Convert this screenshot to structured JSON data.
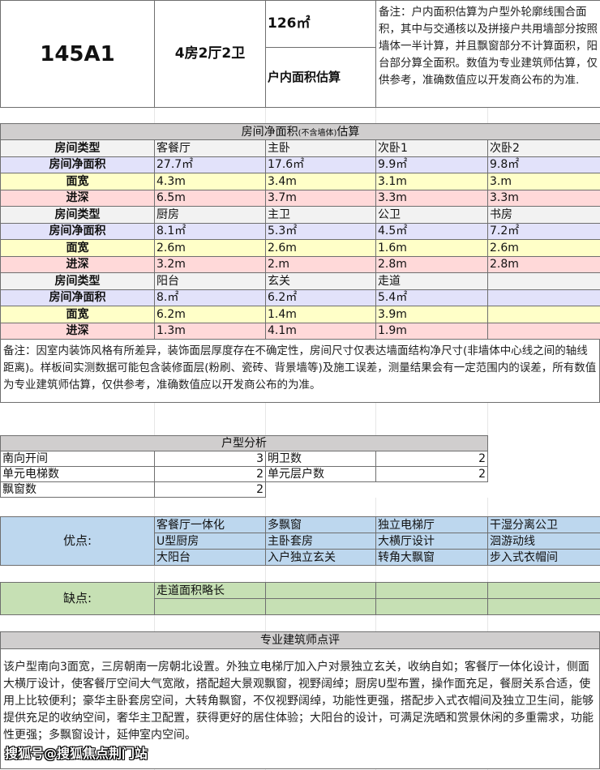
{
  "header": {
    "unit_code": "145A1",
    "layout": "4房2厅2卫",
    "area_value": "126㎡",
    "area_label": "户内面积估算",
    "note": "备注：户内面积估算为户型外轮廓线围合面积，其中与交通核以及拼接户共用墙部分按照墙体一半计算，并且飘窗部分不计算面积，阳台部分算全面积。数值为专业建筑师估算，仅供参考，准确数值应以开发商公布的为准."
  },
  "rooms": {
    "title": "房间净面积",
    "title_small": "(不含墙体)",
    "title_end": "估算",
    "row_labels": {
      "type": "房间类型",
      "area": "房间净面积",
      "width": "面宽",
      "depth": "进深"
    },
    "groups": [
      {
        "types": [
          "客餐厅",
          "主卧",
          "次卧1",
          "次卧2"
        ],
        "areas": [
          "27.7㎡",
          "17.6㎡",
          "9.9㎡",
          "9.8㎡"
        ],
        "widths": [
          "4.3m",
          "3.4m",
          "3.1m",
          "3.m"
        ],
        "depths": [
          "6.5m",
          "3.7m",
          "3.3m",
          "3.3m"
        ]
      },
      {
        "types": [
          "厨房",
          "主卫",
          "公卫",
          "书房"
        ],
        "areas": [
          "8.1㎡",
          "5.3㎡",
          "4.5㎡",
          "7.2㎡"
        ],
        "widths": [
          "2.6m",
          "2.6m",
          "1.6m",
          "2.6m"
        ],
        "depths": [
          "3.2m",
          "2.m",
          "2.8m",
          "2.8m"
        ]
      },
      {
        "types": [
          "阳台",
          "玄关",
          "走道",
          ""
        ],
        "areas": [
          "8.㎡",
          "6.2㎡",
          "5.4㎡",
          ""
        ],
        "widths": [
          "6.2m",
          "1.4m",
          "3.9m",
          ""
        ],
        "depths": [
          "1.3m",
          "4.1m",
          "1.9m",
          ""
        ]
      }
    ],
    "note": "备注：因室内装饰风格有所差异，装饰面层厚度存在不确定性，房间尺寸仅表达墙面结构净尺寸(非墙体中心线之间的轴线距离)。样板间实测数据可能包含装修面层(粉刷、瓷砖、背景墙等)及施工误差，测量结果会有一定范围内的误差，所有数值为专业建筑师估算，仅供参考，准确数值应以开发商公布的为准。"
  },
  "analysis": {
    "title": "户型分析",
    "rows": [
      [
        {
          "label": "南向开间",
          "value": "3"
        },
        {
          "label": "明卫数",
          "value": "2"
        }
      ],
      [
        {
          "label": "单元电梯数",
          "value": "2"
        },
        {
          "label": "单元层户数",
          "value": "2"
        }
      ],
      [
        {
          "label": "飘窗数",
          "value": "2"
        }
      ]
    ]
  },
  "pros": {
    "label": "优点:",
    "items": [
      [
        "客餐厅一体化",
        "多飘窗",
        "独立电梯厅",
        "干湿分离公卫"
      ],
      [
        "U型厨房",
        "主卧套房",
        "大横厅设计",
        "洄游动线"
      ],
      [
        "大阳台",
        "入户独立玄关",
        "转角大飘窗",
        "步入式衣帽间"
      ]
    ],
    "color": "#bdd7ee"
  },
  "cons": {
    "label": "缺点:",
    "items": [
      [
        "走道面积略长",
        "",
        "",
        ""
      ],
      [
        "",
        "",
        "",
        ""
      ]
    ],
    "color": "#c6e0b4"
  },
  "review": {
    "title": "专业建筑师点评",
    "text": "该户型南向3面宽，三房朝南一房朝北设置。外独立电梯厅加入户对景独立玄关，收纳自如；客餐厅一体化设计，侧面大横厅设计，使客餐厅空间大气宽敞，搭配超大景观飘窗，视野阔绰；厨房U型布置，操作面充足，餐厨关系合适，使用上比较便利；豪华主卧套房空间，大转角飘窗，不仅视野阔绰，功能性更强，搭配步入式衣帽间及独立卫生间，能够提供充足的收纳空间，奢华主卫配置，获得更好的居住体验；大阳台的设计，可满足洗晒和赏景休闲的多重需求，功能性更强；多飘窗设计，延伸室内空间。"
  },
  "watermark": "搜狐号@搜狐焦点荆门站"
}
